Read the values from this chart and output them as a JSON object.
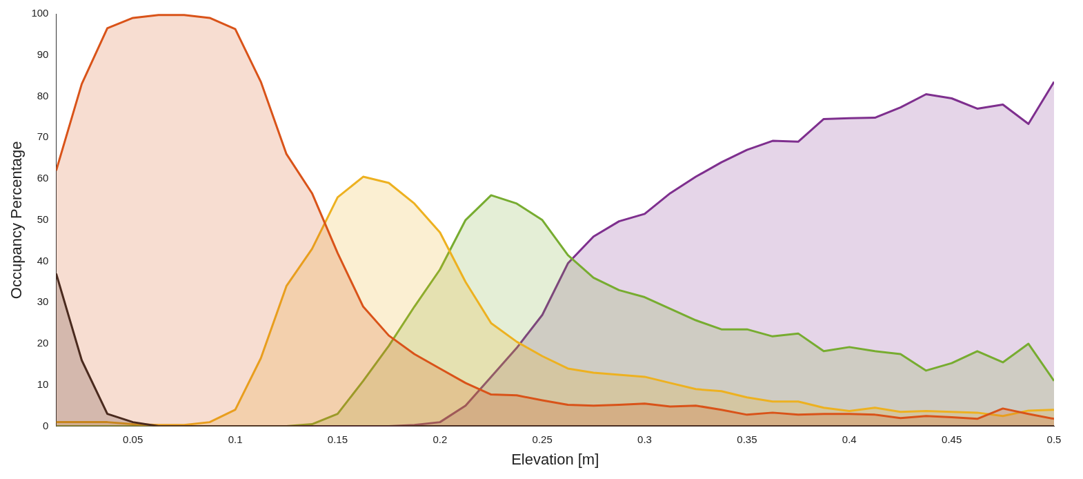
{
  "chart_data": {
    "type": "area",
    "xlabel": "Elevation [m]",
    "ylabel": "Occupancy Percentage",
    "x": [
      0.0125,
      0.025,
      0.0375,
      0.05,
      0.0625,
      0.075,
      0.0875,
      0.1,
      0.1125,
      0.125,
      0.1375,
      0.15,
      0.1625,
      0.175,
      0.1875,
      0.2,
      0.2125,
      0.225,
      0.2375,
      0.25,
      0.2625,
      0.275,
      0.2875,
      0.3,
      0.3125,
      0.325,
      0.3375,
      0.35,
      0.3625,
      0.375,
      0.3875,
      0.4,
      0.4125,
      0.425,
      0.4375,
      0.45,
      0.4625,
      0.475,
      0.4875,
      0.5
    ],
    "xlim": [
      0.0125,
      0.5
    ],
    "xticks": [
      0.05,
      0.1,
      0.15,
      0.2,
      0.25,
      0.3,
      0.35,
      0.4,
      0.45,
      0.5
    ],
    "ylim": [
      0,
      100
    ],
    "yticks": [
      0,
      10,
      20,
      30,
      40,
      50,
      60,
      70,
      80,
      90,
      100
    ],
    "grid": false,
    "legend": false,
    "series": [
      {
        "color": "#4a2a1e",
        "values": [
          37,
          16,
          3,
          1,
          0,
          0,
          0,
          0,
          0,
          0,
          0,
          0,
          0,
          0,
          0,
          0,
          0,
          0,
          0,
          0,
          0,
          0,
          0,
          0,
          0,
          0,
          0,
          0,
          0,
          0,
          0,
          0,
          0,
          0,
          0,
          0,
          0,
          0,
          0,
          0
        ]
      },
      {
        "color": "#d95319",
        "values": [
          62,
          83,
          96.5,
          99,
          99.7,
          99.7,
          99,
          96.3,
          83.5,
          66,
          56.5,
          42,
          29,
          22,
          17.5,
          14,
          10.5,
          7.7,
          7.5,
          6.3,
          5.2,
          5,
          5.2,
          5.5,
          4.8,
          5,
          4,
          2.8,
          3.3,
          2.8,
          3,
          3,
          2.8,
          2,
          2.5,
          2.2,
          1.8,
          4.3,
          3,
          1.8
        ]
      },
      {
        "color": "#edb120",
        "values": [
          1,
          1,
          1,
          0.5,
          0.3,
          0.3,
          1,
          4,
          16.5,
          34,
          43,
          55.5,
          60.5,
          59,
          54,
          47,
          35,
          25,
          20.5,
          17,
          14,
          13,
          12.5,
          12,
          10.5,
          9,
          8.5,
          7,
          6,
          6,
          4.5,
          3.7,
          4.5,
          3.5,
          3.7,
          3.5,
          3.3,
          2.5,
          3.8,
          4
        ]
      },
      {
        "color": "#77ac30",
        "values": [
          0,
          0,
          0,
          0,
          0,
          0,
          0,
          0,
          0,
          0,
          0.5,
          3,
          11,
          19.5,
          29,
          38,
          50,
          56,
          54,
          50,
          41.5,
          36,
          33,
          31.3,
          28.5,
          25.7,
          23.5,
          23.5,
          21.8,
          22.5,
          18.2,
          19.2,
          18.2,
          17.5,
          13.5,
          15.3,
          18.2,
          15.5,
          20,
          11
        ]
      },
      {
        "color": "#7e2f8e",
        "values": [
          0,
          0,
          0,
          0,
          0,
          0,
          0,
          0,
          0,
          0,
          0,
          0,
          0,
          0,
          0.3,
          1,
          5,
          12,
          19,
          27,
          39.5,
          46,
          49.7,
          51.5,
          56.5,
          60.5,
          64,
          67,
          69.2,
          69,
          74.5,
          74.7,
          74.8,
          77.3,
          80.5,
          79.5,
          77,
          78,
          73.3,
          83.5
        ]
      }
    ]
  }
}
